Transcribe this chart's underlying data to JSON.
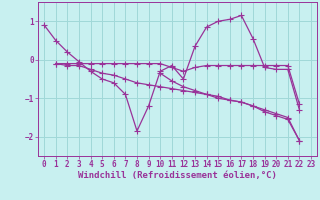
{
  "xlabel": "Windchill (Refroidissement éolien,°C)",
  "bg_color": "#c8f0f0",
  "grid_color": "#a0d8d8",
  "line_color": "#993399",
  "xlim": [
    -0.5,
    23.5
  ],
  "ylim": [
    -2.5,
    1.5
  ],
  "xticks": [
    0,
    1,
    2,
    3,
    4,
    5,
    6,
    7,
    8,
    9,
    10,
    11,
    12,
    13,
    14,
    15,
    16,
    17,
    18,
    19,
    20,
    21,
    22,
    23
  ],
  "yticks": [
    -2,
    -1,
    0,
    1
  ],
  "series": [
    [
      0.9,
      0.5,
      0.2,
      -0.05,
      -0.3,
      -0.5,
      -0.6,
      -0.9,
      -1.85,
      -1.2,
      -0.3,
      -0.15,
      -0.5,
      0.35,
      0.85,
      1.0,
      1.05,
      1.15,
      0.55,
      -0.2,
      -0.25,
      -0.25,
      -1.3,
      null
    ],
    [
      null,
      -0.1,
      -0.1,
      -0.1,
      -0.1,
      -0.1,
      -0.1,
      -0.1,
      -0.1,
      -0.1,
      -0.1,
      -0.2,
      -0.3,
      -0.2,
      -0.15,
      -0.15,
      -0.15,
      -0.15,
      -0.15,
      -0.15,
      -0.15,
      -0.15,
      -1.15,
      null
    ],
    [
      null,
      -0.1,
      -0.15,
      -0.15,
      -0.25,
      -0.35,
      -0.4,
      -0.5,
      -0.6,
      -0.65,
      -0.7,
      -0.75,
      -0.8,
      -0.85,
      -0.9,
      -0.95,
      -1.05,
      -1.1,
      -1.2,
      -1.3,
      -1.4,
      -1.5,
      -2.1,
      null
    ],
    [
      null,
      null,
      null,
      null,
      null,
      null,
      null,
      null,
      null,
      null,
      -0.35,
      -0.55,
      -0.7,
      -0.8,
      -0.9,
      -1.0,
      -1.05,
      -1.1,
      -1.2,
      -1.35,
      -1.45,
      -1.55,
      -2.1,
      null
    ]
  ],
  "marker": "+",
  "markersize": 4,
  "linewidth": 0.9,
  "xlabel_fontsize": 6.5,
  "tick_fontsize": 5.5
}
